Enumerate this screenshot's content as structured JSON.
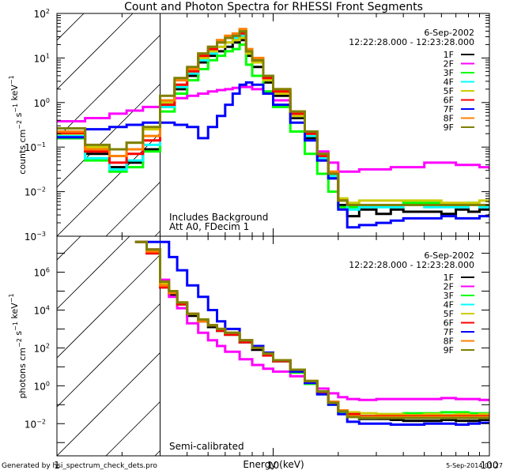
{
  "chart_data": [
    {
      "type": "line",
      "panel": "top",
      "title": "Count and Photon Spectra for RHESSI Front Segments",
      "xlabel": "",
      "ylabel": "counts cm^-2 s^-1 keV^-1",
      "xscale": "log",
      "yscale": "log",
      "xlim": [
        1,
        100
      ],
      "ylim": [
        0.001,
        100
      ],
      "x_ticks": [
        "1",
        "10",
        "100"
      ],
      "y_ticks": [
        "10^-3",
        "10^-2",
        "10^-1",
        "10^0",
        "10^1",
        "10^2"
      ],
      "shaded_region_keV": [
        1,
        3
      ],
      "date": "6-Sep-2002",
      "time_range": "12:22:28.000 - 12:23:28.000",
      "annotations": [
        "Includes Background",
        "Att A0, FDecim 1"
      ],
      "legend_position": "top-right",
      "energy_keV": [
        1.0,
        1.35,
        1.75,
        2.1,
        2.5,
        3.0,
        3.5,
        4.0,
        4.5,
        5.0,
        5.5,
        6.0,
        6.5,
        7.0,
        7.5,
        8.0,
        9.0,
        10.0,
        12.0,
        14.0,
        16.0,
        18.0,
        20.0,
        22.0,
        25.0,
        30.0,
        35.0,
        40.0,
        50.0,
        60.0,
        70.0,
        80.0,
        90.0,
        100.0
      ],
      "series": [
        {
          "name": "1F",
          "color": "#000000",
          "log10_values": [
            -0.8,
            -1.15,
            -1.45,
            -1.35,
            -1.05,
            -0.1,
            0.3,
            0.6,
            0.9,
            1.05,
            1.15,
            1.25,
            1.35,
            1.4,
            1.05,
            0.8,
            0.45,
            0.15,
            -0.35,
            -0.8,
            -1.3,
            -1.7,
            -2.3,
            -2.55,
            -2.4,
            -2.5,
            -2.4,
            -2.45,
            -2.45,
            -2.5,
            -2.4,
            -2.45,
            -2.4,
            -2.3
          ]
        },
        {
          "name": "2F",
          "color": "#ff00ff",
          "log10_values": [
            -0.42,
            -0.35,
            -0.25,
            -0.18,
            -0.1,
            0.05,
            0.1,
            0.15,
            0.2,
            0.25,
            0.28,
            0.3,
            0.33,
            0.35,
            0.35,
            0.3,
            0.2,
            0.05,
            -0.3,
            -0.7,
            -1.1,
            -1.35,
            -1.55,
            -1.55,
            -1.5,
            -1.5,
            -1.45,
            -1.45,
            -1.35,
            -1.35,
            -1.4,
            -1.4,
            -1.45,
            -1.5
          ]
        },
        {
          "name": "3F",
          "color": "#00ff00",
          "log10_values": [
            -0.8,
            -1.3,
            -1.55,
            -1.45,
            -1.1,
            -0.2,
            0.2,
            0.5,
            0.75,
            0.95,
            1.05,
            1.15,
            1.2,
            1.3,
            0.85,
            0.6,
            0.25,
            -0.1,
            -0.65,
            -1.15,
            -1.6,
            -2.0,
            -2.35,
            -2.35,
            -2.3,
            -2.3,
            -2.3,
            -2.25,
            -2.25,
            -2.3,
            -2.3,
            -2.25,
            -2.3,
            -2.3
          ]
        },
        {
          "name": "4F",
          "color": "#00ffff",
          "log10_values": [
            -0.75,
            -1.25,
            -1.5,
            -1.3,
            -0.95,
            -0.1,
            0.35,
            0.65,
            0.95,
            1.1,
            1.25,
            1.35,
            1.45,
            1.5,
            1.1,
            0.9,
            0.5,
            0.2,
            -0.3,
            -0.75,
            -1.25,
            -1.65,
            -2.2,
            -2.4,
            -2.35,
            -2.35,
            -2.35,
            -2.3,
            -2.35,
            -2.35,
            -2.35,
            -2.3,
            -2.35,
            -2.35
          ]
        },
        {
          "name": "5F",
          "color": "#cccc00",
          "log10_values": [
            -0.7,
            -1.0,
            -1.05,
            -0.9,
            -0.6,
            0.0,
            0.4,
            0.7,
            1.0,
            1.15,
            1.25,
            1.35,
            1.4,
            1.45,
            1.1,
            0.9,
            0.5,
            0.2,
            -0.3,
            -0.7,
            -1.2,
            -1.6,
            -2.15,
            -2.25,
            -2.2,
            -2.2,
            -2.2,
            -2.2,
            -2.2,
            -2.25,
            -2.25,
            -2.25,
            -2.2,
            -2.25
          ]
        },
        {
          "name": "6F",
          "color": "#ff0000",
          "log10_values": [
            -0.68,
            -1.1,
            -1.35,
            -1.15,
            -0.85,
            -0.05,
            0.4,
            0.7,
            1.05,
            1.2,
            1.35,
            1.45,
            1.5,
            1.55,
            1.15,
            0.95,
            0.55,
            0.25,
            -0.25,
            -0.7,
            -1.2,
            -1.6,
            -2.2,
            -2.3,
            -2.3,
            -2.3,
            -2.3,
            -2.3,
            -2.3,
            -2.3,
            -2.3,
            -2.3,
            -2.3,
            -2.3
          ]
        },
        {
          "name": "7F",
          "color": "#0000ff",
          "log10_values": [
            -0.78,
            -0.6,
            -0.55,
            -0.5,
            -0.45,
            -0.45,
            -0.5,
            -0.55,
            -0.8,
            -0.55,
            -0.3,
            -0.05,
            0.2,
            0.4,
            0.45,
            0.4,
            0.2,
            -0.05,
            -0.45,
            -0.85,
            -1.3,
            -1.7,
            -2.4,
            -2.8,
            -2.75,
            -2.7,
            -2.65,
            -2.6,
            -2.6,
            -2.55,
            -2.6,
            -2.6,
            -2.55,
            -2.5
          ]
        },
        {
          "name": "8F",
          "color": "#ff8000",
          "log10_values": [
            -0.65,
            -1.05,
            -1.2,
            -1.05,
            -0.75,
            0.05,
            0.5,
            0.75,
            1.1,
            1.25,
            1.4,
            1.5,
            1.55,
            1.65,
            1.2,
            1.0,
            0.6,
            0.3,
            -0.2,
            -0.65,
            -1.15,
            -1.55,
            -2.2,
            -2.3,
            -2.3,
            -2.3,
            -2.3,
            -2.3,
            -2.3,
            -2.3,
            -2.3,
            -2.3,
            -2.3,
            -2.3
          ]
        },
        {
          "name": "9F",
          "color": "#808000",
          "log10_values": [
            -0.58,
            -0.95,
            -1.05,
            -0.9,
            -0.55,
            0.15,
            0.55,
            0.8,
            1.1,
            1.25,
            1.35,
            1.45,
            1.5,
            1.6,
            1.15,
            0.95,
            0.6,
            0.3,
            -0.2,
            -0.65,
            -1.15,
            -1.6,
            -2.2,
            -2.3,
            -2.3,
            -2.3,
            -2.3,
            -2.3,
            -2.3,
            -2.3,
            -2.3,
            -2.3,
            -2.3,
            -2.3
          ]
        }
      ]
    },
    {
      "type": "line",
      "panel": "bottom",
      "xlabel": "Energy (keV)",
      "ylabel": "photons cm^-2 s^-1 keV^-1",
      "xscale": "log",
      "yscale": "log",
      "xlim": [
        1,
        100
      ],
      "ylim": [
        0.0002,
        80000000
      ],
      "x_ticks": [
        "1",
        "10",
        "100"
      ],
      "y_ticks": [
        "10^-2",
        "10^0",
        "10^2",
        "10^4",
        "10^6"
      ],
      "shaded_region_keV": [
        1,
        3
      ],
      "date": "6-Sep-2002",
      "time_range": "12:22:28.000 - 12:23:28.000",
      "annotations": [
        "Semi-calibrated"
      ],
      "legend_position": "top-right",
      "energy_keV": [
        2.3,
        2.6,
        3.0,
        3.3,
        3.6,
        4.0,
        4.5,
        5.0,
        5.5,
        6.0,
        7.0,
        8.0,
        9.0,
        10.0,
        12.0,
        14.0,
        16.0,
        18.0,
        20.0,
        22.0,
        25.0,
        30.0,
        35.0,
        40.0,
        50.0,
        60.0,
        70.0,
        80.0,
        90.0,
        100.0
      ],
      "series": [
        {
          "name": "1F",
          "color": "#000000",
          "log10_values": [
            7.6,
            7.0,
            5.2,
            4.8,
            4.3,
            3.7,
            3.4,
            3.1,
            2.9,
            2.7,
            2.3,
            1.9,
            1.6,
            1.3,
            0.8,
            0.2,
            -0.4,
            -0.9,
            -1.35,
            -1.6,
            -1.75,
            -1.75,
            -1.8,
            -1.85,
            -1.85,
            -1.8,
            -1.85,
            -1.85,
            -1.8,
            -1.75
          ]
        },
        {
          "name": "2F",
          "color": "#ff00ff",
          "log10_values": [
            7.6,
            7.2,
            5.6,
            4.7,
            4.1,
            3.3,
            2.8,
            2.4,
            2.1,
            1.8,
            1.4,
            1.1,
            0.9,
            0.75,
            0.5,
            0.2,
            -0.15,
            -0.4,
            -0.6,
            -0.7,
            -0.75,
            -0.7,
            -0.7,
            -0.7,
            -0.7,
            -0.65,
            -0.7,
            -0.7,
            -0.75,
            -0.75
          ]
        },
        {
          "name": "3F",
          "color": "#00ff00",
          "log10_values": [
            7.6,
            7.1,
            5.4,
            4.9,
            4.3,
            3.8,
            3.4,
            3.2,
            2.9,
            2.7,
            2.3,
            2.0,
            1.6,
            1.3,
            0.7,
            0.1,
            -0.45,
            -1.0,
            -1.45,
            -1.55,
            -1.6,
            -1.5,
            -1.5,
            -1.45,
            -1.45,
            -1.4,
            -1.4,
            -1.45,
            -1.45,
            -1.4
          ]
        },
        {
          "name": "4F",
          "color": "#00ffff",
          "log10_values": [
            7.6,
            7.1,
            5.3,
            4.9,
            4.3,
            3.8,
            3.4,
            3.2,
            2.9,
            2.8,
            2.3,
            2.0,
            1.6,
            1.3,
            0.8,
            0.2,
            -0.35,
            -0.9,
            -1.35,
            -1.6,
            -1.7,
            -1.65,
            -1.65,
            -1.7,
            -1.7,
            -1.7,
            -1.65,
            -1.7,
            -1.7,
            -1.7
          ]
        },
        {
          "name": "5F",
          "color": "#cccc00",
          "log10_values": [
            7.6,
            7.1,
            5.4,
            4.9,
            4.4,
            3.8,
            3.5,
            3.2,
            3.0,
            2.8,
            2.4,
            2.0,
            1.7,
            1.35,
            0.85,
            0.25,
            -0.3,
            -0.85,
            -1.3,
            -1.4,
            -1.45,
            -1.5,
            -1.5,
            -1.55,
            -1.5,
            -1.55,
            -1.5,
            -1.55,
            -1.5,
            -1.55
          ]
        },
        {
          "name": "6F",
          "color": "#ff0000",
          "log10_values": [
            7.6,
            7.0,
            5.2,
            4.9,
            4.3,
            3.8,
            3.4,
            3.2,
            2.9,
            2.7,
            2.3,
            2.0,
            1.6,
            1.3,
            0.8,
            0.2,
            -0.35,
            -0.85,
            -1.3,
            -1.5,
            -1.6,
            -1.6,
            -1.6,
            -1.6,
            -1.6,
            -1.6,
            -1.6,
            -1.6,
            -1.6,
            -1.6
          ]
        },
        {
          "name": "7F",
          "color": "#0000ff",
          "log10_values": [
            7.6,
            7.6,
            7.6,
            6.8,
            6.1,
            5.3,
            4.7,
            4.0,
            3.4,
            3.0,
            2.4,
            2.1,
            1.75,
            1.35,
            0.75,
            0.15,
            -0.45,
            -1.0,
            -1.5,
            -1.9,
            -2.0,
            -2.0,
            -2.05,
            -2.05,
            -2.0,
            -2.0,
            -2.05,
            -2.0,
            -1.95,
            -1.9
          ]
        },
        {
          "name": "8F",
          "color": "#ff8000",
          "log10_values": [
            7.6,
            7.1,
            5.3,
            4.9,
            4.4,
            3.8,
            3.4,
            3.2,
            3.0,
            2.8,
            2.4,
            2.0,
            1.7,
            1.35,
            0.85,
            0.25,
            -0.3,
            -0.85,
            -1.3,
            -1.6,
            -1.65,
            -1.65,
            -1.65,
            -1.65,
            -1.65,
            -1.65,
            -1.65,
            -1.65,
            -1.65,
            -1.65
          ]
        },
        {
          "name": "9F",
          "color": "#808000",
          "log10_values": [
            7.6,
            7.2,
            5.5,
            5.0,
            4.4,
            3.8,
            3.5,
            3.2,
            3.0,
            2.8,
            2.4,
            2.0,
            1.7,
            1.35,
            0.85,
            0.25,
            -0.3,
            -0.9,
            -1.35,
            -1.65,
            -1.7,
            -1.7,
            -1.7,
            -1.7,
            -1.7,
            -1.7,
            -1.7,
            -1.7,
            -1.7,
            -1.7
          ]
        }
      ]
    }
  ],
  "footer": {
    "generated_by": "Generated by hsi_spectrum_check_dets.pro",
    "timestamp": "5-Sep-2014 01:27"
  }
}
